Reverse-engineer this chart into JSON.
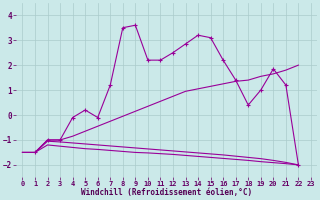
{
  "background_color": "#cbe9e9",
  "grid_color": "#aacccc",
  "line_color": "#990099",
  "tick_color": "#660066",
  "xlabel": "Windchill (Refroidissement éolien,°C)",
  "xlabel_color": "#550055",
  "xlim": [
    -0.5,
    23.5
  ],
  "ylim": [
    -2.5,
    4.5
  ],
  "xticks": [
    0,
    1,
    2,
    3,
    4,
    5,
    6,
    7,
    8,
    9,
    10,
    11,
    12,
    13,
    14,
    15,
    16,
    17,
    18,
    19,
    20,
    21,
    22,
    23
  ],
  "yticks": [
    -2,
    -1,
    0,
    1,
    2,
    3,
    4
  ],
  "line1_x": [
    0,
    1,
    2,
    3,
    4,
    5,
    6,
    7,
    8,
    9,
    10,
    11,
    12,
    13,
    14,
    15,
    16,
    17,
    18,
    19,
    20,
    21,
    22
  ],
  "line1_y": [
    -1.5,
    -1.5,
    -1.0,
    -1.0,
    -0.85,
    -0.65,
    -0.45,
    -0.25,
    -0.05,
    0.15,
    0.35,
    0.55,
    0.75,
    0.95,
    1.05,
    1.15,
    1.25,
    1.35,
    1.4,
    1.55,
    1.65,
    1.8,
    2.0
  ],
  "line2_x": [
    0,
    1,
    2,
    3,
    4,
    5,
    6,
    7,
    8,
    9,
    10,
    11,
    12,
    13,
    14,
    15,
    16,
    17,
    18,
    19,
    20,
    21,
    22
  ],
  "line2_y": [
    -1.5,
    -1.5,
    -1.2,
    -1.25,
    -1.3,
    -1.35,
    -1.38,
    -1.42,
    -1.46,
    -1.5,
    -1.52,
    -1.55,
    -1.58,
    -1.62,
    -1.66,
    -1.7,
    -1.74,
    -1.78,
    -1.82,
    -1.87,
    -1.91,
    -1.95,
    -2.0
  ],
  "line3_x": [
    0,
    1,
    2,
    3,
    4,
    5,
    6,
    7,
    8,
    9,
    10,
    11,
    12,
    13,
    14,
    15,
    16,
    17,
    18,
    19,
    20,
    21,
    22
  ],
  "line3_y": [
    -1.5,
    -1.5,
    -1.05,
    -1.08,
    -1.12,
    -1.16,
    -1.2,
    -1.24,
    -1.28,
    -1.32,
    -1.36,
    -1.4,
    -1.44,
    -1.48,
    -1.52,
    -1.56,
    -1.6,
    -1.65,
    -1.7,
    -1.75,
    -1.82,
    -1.9,
    -2.0
  ],
  "zigzag_x": [
    1,
    2,
    3,
    4,
    5,
    6,
    7,
    8,
    9,
    10,
    11,
    12,
    13,
    14,
    15,
    16,
    17,
    18,
    19,
    20,
    21,
    22
  ],
  "zigzag_y": [
    -1.5,
    -1.0,
    -1.0,
    -0.1,
    0.2,
    -0.1,
    1.2,
    3.5,
    3.6,
    2.2,
    2.2,
    2.5,
    2.85,
    3.2,
    3.1,
    2.2,
    1.4,
    0.4,
    1.0,
    1.85,
    1.2,
    -2.0
  ]
}
